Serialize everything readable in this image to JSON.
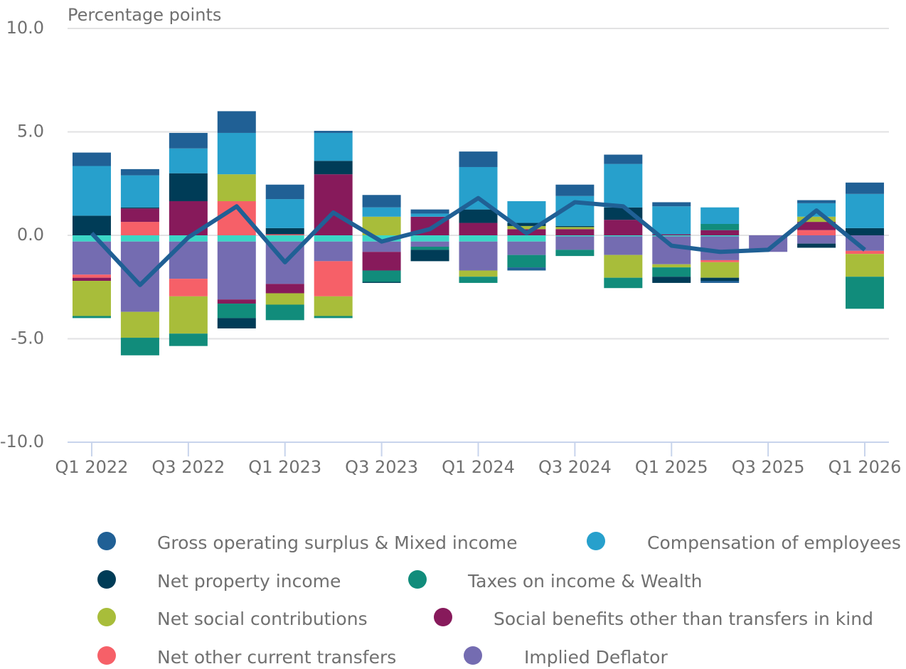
{
  "chart_data": {
    "type": "bar",
    "ylabel": "Percentage points",
    "categories": [
      "Q1 2022",
      null,
      "Q3 2022",
      null,
      "Q1 2023",
      null,
      "Q3 2023",
      null,
      "Q1 2024",
      null,
      "Q3 2024",
      null,
      "Q1 2025",
      null,
      "Q3 2025",
      null,
      "Q1 2026"
    ],
    "ylim": [
      -10,
      10
    ],
    "yticks": [
      {
        "value": 10,
        "label": "10.0"
      },
      {
        "value": 5,
        "label": "5.0"
      },
      {
        "value": 0,
        "label": "0.0"
      },
      {
        "value": -5,
        "label": "-5.0"
      },
      {
        "value": -10,
        "label": "-10.0"
      }
    ],
    "grid": true,
    "legend": "bottom",
    "series": [
      {
        "name": "Gross operating surplus & Mixed income",
        "color": "#206095",
        "values": [
          0.65,
          0.3,
          0.75,
          1.05,
          0.7,
          0.1,
          0.6,
          0.2,
          0.75,
          -0.15,
          0.55,
          0.45,
          0.2,
          -0.1,
          0,
          0.15,
          0.55
        ]
      },
      {
        "name": "Compensation of employees",
        "color": "#27a0cc",
        "values": [
          2.4,
          1.55,
          1.2,
          2.0,
          1.4,
          1.35,
          0.45,
          0.15,
          2.05,
          1.05,
          1.45,
          2.1,
          1.35,
          0.8,
          0,
          0.65,
          1.65
        ]
      },
      {
        "name": "Net property income",
        "color": "#003c57",
        "values": [
          0.95,
          0.05,
          1.35,
          -0.5,
          0.3,
          0.65,
          -0.05,
          -0.55,
          0.65,
          0.15,
          0.05,
          0.6,
          -0.3,
          -0.15,
          0,
          -0.2,
          0.35
        ]
      },
      {
        "name": "Taxes on income & Wealth",
        "color": "#118c7b",
        "values": [
          -0.1,
          -0.85,
          -0.6,
          -0.7,
          -0.75,
          -0.1,
          -0.55,
          -0.15,
          -0.3,
          -0.6,
          -0.3,
          -0.5,
          -0.45,
          0.3,
          0,
          0,
          -1.55
        ]
      },
      {
        "name": "Net social contributions",
        "color": "#a8bd3a",
        "values": [
          -1.7,
          -1.25,
          -1.8,
          1.3,
          -0.55,
          -0.95,
          0.9,
          0,
          -0.3,
          0.15,
          0.1,
          -1.1,
          -0.15,
          -0.75,
          0,
          0.25,
          -1.1
        ]
      },
      {
        "name": "Social benefits other than transfers in kind",
        "color": "#871a5b",
        "values": [
          -0.15,
          0.65,
          1.65,
          -0.2,
          -0.45,
          2.95,
          -0.9,
          0.9,
          0.6,
          0.3,
          0.3,
          0.75,
          0.05,
          0.25,
          0,
          0.4,
          0
        ]
      },
      {
        "name": "Net other current transfers",
        "color": "#f66068",
        "values": [
          -0.15,
          0.65,
          -0.85,
          1.65,
          0.05,
          -1.7,
          0,
          0,
          0,
          0,
          0,
          0,
          0,
          -0.1,
          0,
          0.25,
          -0.15
        ]
      },
      {
        "name": "Implied Deflator",
        "color": "#746cb1",
        "values": [
          -1.6,
          -3.4,
          -1.8,
          -2.8,
          -2.05,
          -0.95,
          -0.5,
          -0.25,
          -1.4,
          -0.65,
          -0.65,
          -0.9,
          -1.35,
          -1.15,
          -0.8,
          -0.4,
          -0.75
        ]
      },
      {
        "color": "#3bd6c6",
        "values": [
          -0.3,
          -0.3,
          -0.3,
          -0.3,
          -0.3,
          -0.3,
          -0.3,
          -0.3,
          -0.3,
          -0.3,
          -0.05,
          -0.05,
          -0.05,
          -0.05,
          0,
          0,
          0
        ]
      }
    ],
    "line": {
      "color": "#206095",
      "values": [
        0.1,
        -2.4,
        -0.1,
        1.4,
        -1.3,
        1.1,
        -0.3,
        0.3,
        1.8,
        0.1,
        1.6,
        1.4,
        -0.5,
        -0.8,
        -0.7,
        1.2,
        -0.7
      ]
    }
  }
}
